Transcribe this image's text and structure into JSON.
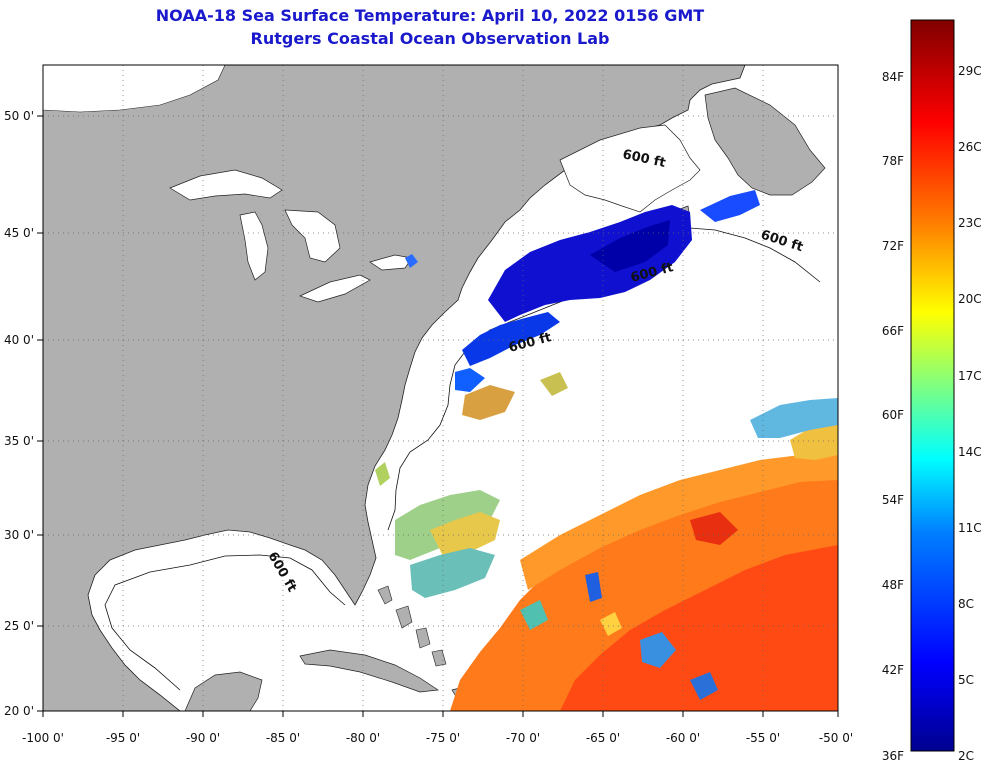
{
  "header": {
    "title": "NOAA-18 Sea Surface Temperature:  April 10, 2022 0156 GMT",
    "subtitle": "Rutgers Coastal Ocean Observation Lab"
  },
  "map": {
    "lon_range": [
      -100,
      -50
    ],
    "lat_range": [
      20,
      52
    ],
    "lon_ticks": [
      "-100 0'",
      "-95 0'",
      "-90 0'",
      "-85 0'",
      "-80 0'",
      "-75 0'",
      "-70 0'",
      "-65 0'",
      "-60 0'",
      "-55 0'",
      "-50 0'"
    ],
    "lat_ticks": [
      "20 0'",
      "25 0'",
      "30 0'",
      "35 0'",
      "40 0'",
      "45 0'",
      "50 0'"
    ],
    "depth_labels": [
      "600 ft",
      "600 ft",
      "600 ft",
      "600 ft",
      "600 ft"
    ],
    "colors": {
      "land": "#b0b0b0",
      "cloud": "#ffffff",
      "grid": "#666666"
    }
  },
  "colorbar": {
    "fahrenheit": [
      "36F",
      "42F",
      "48F",
      "54F",
      "60F",
      "66F",
      "72F",
      "78F",
      "84F"
    ],
    "celsius": [
      "2C",
      "5C",
      "8C",
      "11C",
      "14C",
      "17C",
      "20C",
      "23C",
      "26C",
      "29C"
    ],
    "colors": [
      "#00008f",
      "#0000ff",
      "#0080ff",
      "#00ffff",
      "#80ff80",
      "#ffff00",
      "#ff8000",
      "#ff0000",
      "#800000"
    ]
  }
}
